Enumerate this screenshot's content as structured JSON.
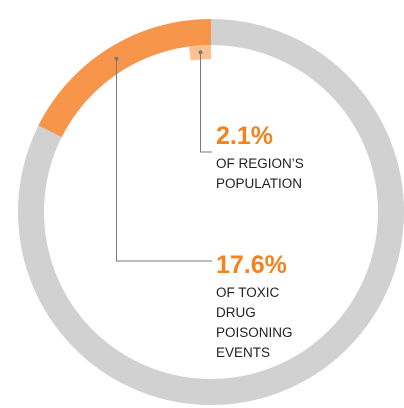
{
  "chart_data": {
    "type": "pie",
    "style": "donut-rings",
    "title": "",
    "rings": [
      {
        "name": "",
        "value": 17.6,
        "unit": "%",
        "label": "17.6%",
        "caption_lines": [
          "OF TOXIC",
          "DRUG",
          "POISONING",
          "EVENTS"
        ],
        "fill_color": "#f7964a",
        "track_color": "#d1d1d1"
      },
      {
        "name": "",
        "value": 2.1,
        "unit": "%",
        "label": "2.1%",
        "caption_lines": [
          "OF REGION’S",
          "POPULATION"
        ],
        "fill_color": "#fac08f",
        "track_color": null
      }
    ]
  },
  "colors": {
    "accent_text": "#f58220",
    "leader_line": "#7a7a7a",
    "caption_text": "#222222"
  }
}
